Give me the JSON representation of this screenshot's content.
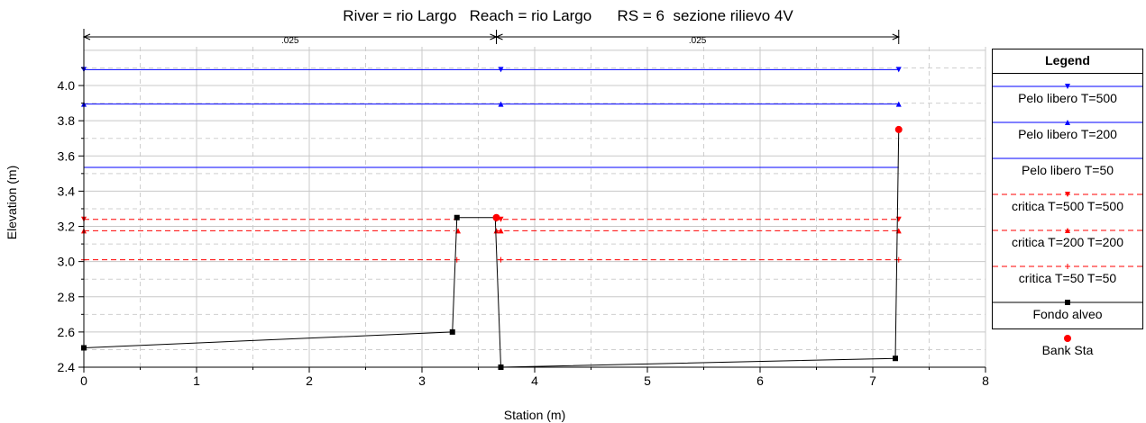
{
  "chart_data": {
    "type": "line",
    "title": "River = rio Largo   Reach = rio Largo      RS = 6  sezione rilievo 4V",
    "xlabel": "Station (m)",
    "ylabel": "Elevation (m)",
    "xlim": [
      0,
      8
    ],
    "ylim": [
      2.4,
      4.22
    ],
    "xticks": [
      "0",
      "1",
      "2",
      "3",
      "4",
      "5",
      "6",
      "7",
      "8"
    ],
    "yticks": [
      "2.4",
      "2.6",
      "2.8",
      "3.0",
      "3.2",
      "3.4",
      "3.6",
      "3.8",
      "4.0"
    ],
    "grid": true,
    "legend_position": "right",
    "legend_title": "Legend",
    "manning": [
      {
        "label": ".025",
        "x_start": 0,
        "x_end": 3.66
      },
      {
        "label": ".025",
        "x_start": 3.66,
        "x_end": 7.23
      }
    ],
    "series": [
      {
        "name": "Pelo libero T=500",
        "color": "#0000ff",
        "style": "solid",
        "marker": "triangle-down",
        "x": [
          0,
          7.23
        ],
        "y": [
          4.09,
          4.09
        ],
        "marker_x": [
          0,
          3.7,
          7.23
        ]
      },
      {
        "name": "Pelo libero T=200",
        "color": "#0000ff",
        "style": "solid",
        "marker": "triangle-up",
        "x": [
          0,
          7.23
        ],
        "y": [
          3.895,
          3.895
        ],
        "marker_x": [
          0,
          3.7,
          7.23
        ]
      },
      {
        "name": "Pelo libero T=50",
        "color": "#0000ff",
        "style": "solid",
        "marker": "none",
        "x": [
          0,
          7.23
        ],
        "y": [
          3.535,
          3.535
        ],
        "marker_x": []
      },
      {
        "name": "critica T=500 T=500",
        "color": "#ff0000",
        "style": "dashed",
        "marker": "triangle-down",
        "segments": [
          {
            "x": [
              0,
              3.3
            ],
            "y": [
              3.24,
              3.24
            ]
          },
          {
            "x": [
              3.64,
              7.23
            ],
            "y": [
              3.24,
              3.24
            ]
          }
        ],
        "marker_x": [
          0,
          3.66,
          3.7,
          7.23
        ]
      },
      {
        "name": "critica T=200 T=200",
        "color": "#ff0000",
        "style": "dashed",
        "marker": "triangle-up",
        "segments": [
          {
            "x": [
              0,
              3.29
            ],
            "y": [
              3.175,
              3.175
            ]
          },
          {
            "x": [
              3.65,
              7.23
            ],
            "y": [
              3.175,
              3.175
            ]
          }
        ],
        "marker_x": [
          0,
          3.32,
          3.66,
          3.7,
          7.23
        ]
      },
      {
        "name": "critica T=50 T=50",
        "color": "#ff0000",
        "style": "dashed",
        "marker": "plus",
        "segments": [
          {
            "x": [
              0,
              3.28
            ],
            "y": [
              3.01,
              3.01
            ]
          },
          {
            "x": [
              3.67,
              7.23
            ],
            "y": [
              3.01,
              3.01
            ]
          }
        ],
        "marker_x": [
          0,
          3.31,
          3.7,
          7.23
        ]
      },
      {
        "name": "Fondo alveo",
        "color": "#000000",
        "style": "solid",
        "marker": "square",
        "x": [
          0,
          3.27,
          3.31,
          3.65,
          3.7,
          7.2,
          7.23
        ],
        "y": [
          2.51,
          2.6,
          3.25,
          3.25,
          2.4,
          2.45,
          3.75
        ],
        "marker_x": [
          0,
          3.27,
          3.31,
          3.7,
          7.2
        ]
      },
      {
        "name": "Bank Sta",
        "color": "#ff0000",
        "style": "none",
        "marker": "circle",
        "x": [
          3.66,
          7.23
        ],
        "y": [
          3.25,
          3.75
        ]
      }
    ]
  }
}
